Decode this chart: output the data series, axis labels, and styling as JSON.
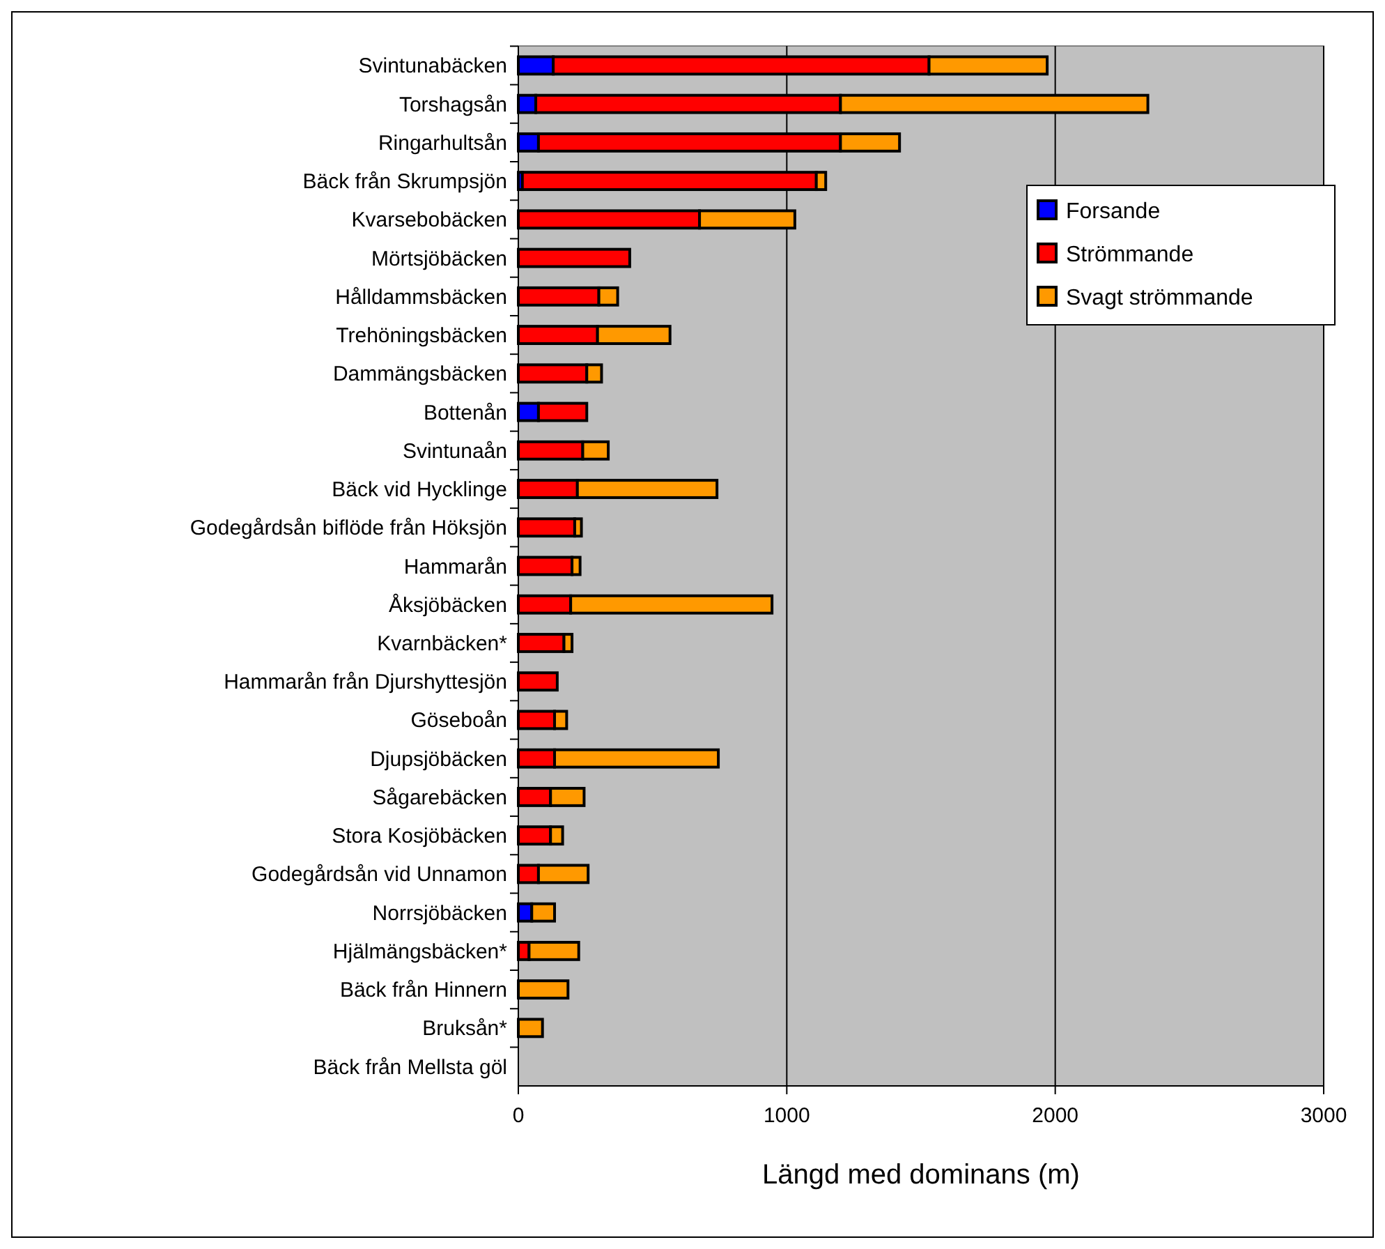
{
  "chart_data": {
    "type": "bar",
    "orientation": "horizontal",
    "stacked": true,
    "categories": [
      "Svintunabäcken",
      "Torshagsån",
      "Ringarhultsån",
      "Bäck från Skrumpsjön",
      "Kvarsebobäcken",
      "Mörtsjöbäcken",
      "Hålldammsbäcken",
      "Trehöningsbäcken",
      "Dammängsbäcken",
      "Bottenån",
      "Svintunaån",
      "Bäck vid Hycklinge",
      "Godegårdsån biflöde från Höksjön",
      "Hammarån",
      "Åksjöbäcken",
      "Kvarnbäcken*",
      "Hammarån från Djurshyttesjön",
      "Göseboån",
      "Djupsjöbäcken",
      "Sågarebäcken",
      "Stora Kosjöbäcken",
      "Godegårdsån vid Unnamon ",
      "Norrsjöbäcken",
      "Hjälmängsbäcken*",
      "Bäck från Hinnern",
      "Bruksån*",
      "Bäck från Mellsta göl"
    ],
    "series": [
      {
        "name": "Forsande",
        "color": "#0000ff",
        "values": [
          130,
          65,
          75,
          15,
          null,
          null,
          null,
          null,
          null,
          75,
          null,
          null,
          null,
          null,
          null,
          null,
          null,
          null,
          null,
          null,
          null,
          null,
          50,
          null,
          null,
          null,
          null
        ]
      },
      {
        "name": "Strömmande",
        "color": "#ff0000",
        "values": [
          1400,
          1135,
          1125,
          1095,
          675,
          415,
          300,
          295,
          255,
          180,
          240,
          220,
          210,
          200,
          195,
          170,
          145,
          135,
          135,
          120,
          120,
          75,
          null,
          40,
          null,
          null,
          null
        ]
      },
      {
        "name": "Svagt strömmande",
        "color": "#ff9900",
        "values": [
          440,
          1145,
          220,
          35,
          355,
          null,
          70,
          270,
          55,
          null,
          95,
          520,
          25,
          30,
          750,
          30,
          null,
          45,
          610,
          125,
          45,
          185,
          85,
          185,
          185,
          90,
          null
        ]
      }
    ],
    "xlim": [
      0,
      3000
    ],
    "xticks": [
      0,
      1000,
      2000,
      3000
    ],
    "xlabel": "Längd med dominans (m)",
    "grid": "x",
    "legend": "right"
  }
}
